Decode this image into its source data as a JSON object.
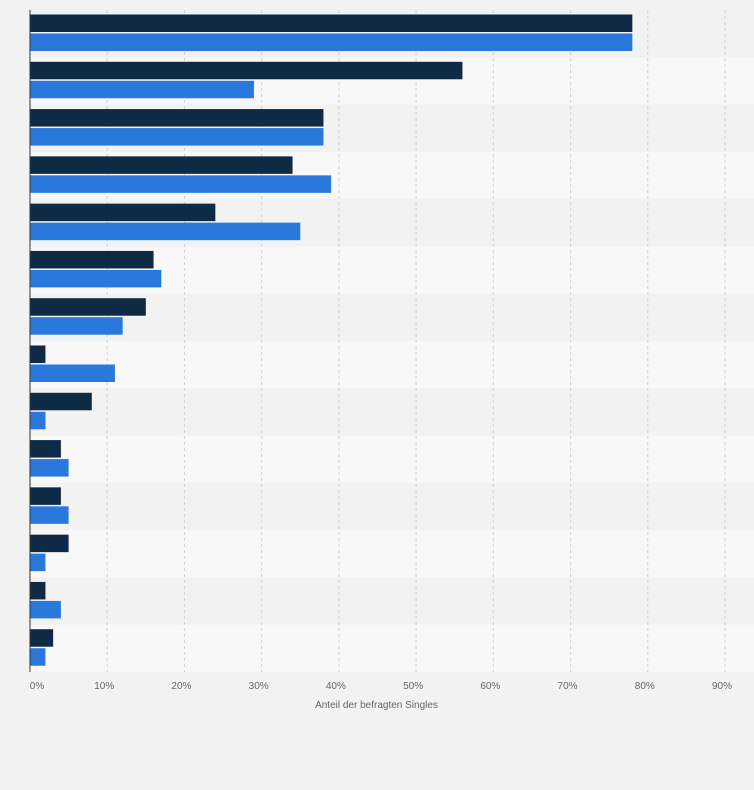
{
  "chart_data": {
    "type": "bar",
    "orientation": "horizontal",
    "title": "",
    "xlabel": "Anteil der befragten Singles",
    "ylabel": "",
    "xlim": [
      0,
      90
    ],
    "x_ticks": [
      "0%",
      "10%",
      "20%",
      "30%",
      "40%",
      "50%",
      "60%",
      "70%",
      "80%",
      "90%"
    ],
    "grid": true,
    "legend": "none",
    "categories": [
      "",
      "",
      "",
      "",
      "",
      "",
      "",
      "",
      "",
      "",
      "",
      "",
      "",
      ""
    ],
    "series": [
      {
        "color": "#0f2a45",
        "values": [
          78,
          56,
          38,
          34,
          24,
          16,
          15,
          2,
          8,
          4,
          4,
          5,
          2,
          3
        ]
      },
      {
        "color": "#2a78dc",
        "values": [
          78,
          29,
          38,
          39,
          35,
          17,
          12,
          11,
          2,
          5,
          5,
          2,
          4,
          2
        ]
      }
    ]
  }
}
